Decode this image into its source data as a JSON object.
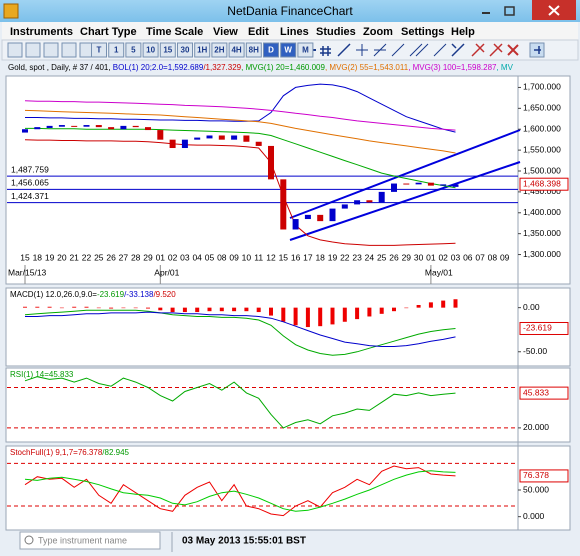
{
  "window": {
    "title": "NetDania FinanceChart",
    "menu": [
      "Instruments",
      "Chart Type",
      "Time Scale",
      "View",
      "Edit",
      "Lines",
      "Studies",
      "Zoom",
      "Settings",
      "Help"
    ],
    "toolbar": [
      "T",
      "1",
      "5",
      "10",
      "15",
      "30",
      "1H",
      "2H",
      "4H",
      "8H",
      "D",
      "W",
      "M"
    ],
    "active_toolbar": [
      "D",
      "W"
    ],
    "search_placeholder": "Type instrument name",
    "status": "03 May 2013 15:55:01 BST"
  },
  "chart": {
    "legend": [
      {
        "text": "Gold, spot , Daily, # 37 / 401, ",
        "color": "#000000"
      },
      {
        "text": "BOL(1) 20;2.0=1,592.689",
        "color": "#0000cc"
      },
      {
        "text": "/1,327.329",
        "color": "#cc0000"
      },
      {
        "text": ", MVG(1) 20=1,460.009",
        "color": "#009900"
      },
      {
        "text": ", MVG(2) 55=1,543.011",
        "color": "#e07000"
      },
      {
        "text": ", MVG(3) 100=1,598.287",
        "color": "#cc00cc"
      },
      {
        "text": ", MV",
        "color": "#00aaaa"
      }
    ],
    "dates": [
      "15",
      "18",
      "19",
      "20",
      "21",
      "22",
      "25",
      "26",
      "27",
      "28",
      "29",
      "01",
      "02",
      "03",
      "04",
      "05",
      "08",
      "09",
      "10",
      "11",
      "12",
      "15",
      "16",
      "17",
      "18",
      "19",
      "22",
      "23",
      "24",
      "25",
      "26",
      "29",
      "30",
      "01",
      "02",
      "03",
      "06",
      "07",
      "08",
      "09"
    ],
    "months": [
      {
        "index": 0,
        "label": "Mar/15/13"
      },
      {
        "index": 11,
        "label": "Apr/01"
      },
      {
        "index": 33,
        "label": "May/01"
      }
    ],
    "price": {
      "ylim": [
        1275,
        1725
      ],
      "yticks": [
        {
          "value": 1300,
          "label": "1,300.000"
        },
        {
          "value": 1350,
          "label": "1,350.000"
        },
        {
          "value": 1400,
          "label": "1,400.000"
        },
        {
          "value": 1450,
          "label": "1,450.000"
        },
        {
          "value": 1500,
          "label": "1,500.000"
        },
        {
          "value": 1550,
          "label": "1,550.000"
        },
        {
          "value": 1600,
          "label": "1,600.000"
        },
        {
          "value": 1650,
          "label": "1,650.000"
        },
        {
          "value": 1700,
          "label": "1,700.000"
        }
      ],
      "levels": [
        {
          "value": 1487.759,
          "label": "1,487.759"
        },
        {
          "value": 1456.065,
          "label": "1,456.065"
        },
        {
          "value": 1424.371,
          "label": "1,424.371"
        }
      ],
      "current": {
        "value": 1468.398,
        "label": "1,468.398"
      },
      "up_color": "#0000cc",
      "down_color": "#cc0000",
      "open": [
        1592,
        1600,
        1603,
        1606,
        1608,
        1606,
        1610,
        1605,
        1600,
        1608,
        1605,
        1598,
        1575,
        1555,
        1575,
        1578,
        1585,
        1575,
        1585,
        1570,
        1560,
        1480,
        1360,
        1385,
        1395,
        1380,
        1410,
        1420,
        1430,
        1425,
        1450,
        1470,
        1468,
        1472,
        1465,
        1462,
        null,
        null,
        null,
        null
      ],
      "close": [
        1600,
        1605,
        1608,
        1610,
        1606,
        1610,
        1605,
        1600,
        1608,
        1605,
        1598,
        1575,
        1555,
        1575,
        1580,
        1585,
        1575,
        1585,
        1570,
        1560,
        1480,
        1360,
        1385,
        1395,
        1380,
        1410,
        1420,
        1430,
        1425,
        1450,
        1470,
        1468,
        1472,
        1465,
        1468,
        1468,
        null,
        null,
        null,
        null
      ],
      "series": [
        {
          "name": "BOL upper",
          "color": "#0000cc",
          "values": [
            1628,
            1628,
            1627,
            1627,
            1626,
            1626,
            1625,
            1625,
            1624,
            1624,
            1623,
            1622,
            1622,
            1621,
            1621,
            1620,
            1620,
            1619,
            1619,
            1620,
            1640,
            1680,
            1700,
            1705,
            1708,
            1706,
            1700,
            1690,
            1675,
            1660,
            1645,
            1630,
            1620,
            1610,
            1600,
            1593,
            null,
            null,
            null,
            null
          ]
        },
        {
          "name": "BOL lower",
          "color": "#cc0000",
          "values": [
            1575,
            1574,
            1574,
            1573,
            1573,
            1572,
            1572,
            1572,
            1571,
            1571,
            1570,
            1568,
            1565,
            1563,
            1562,
            1562,
            1561,
            1560,
            1558,
            1555,
            1520,
            1440,
            1370,
            1345,
            1335,
            1330,
            1326,
            1324,
            1322,
            1322,
            1322,
            1323,
            1324,
            1325,
            1326,
            1327,
            null,
            null,
            null,
            null
          ]
        },
        {
          "name": "MVG 20",
          "color": "#00aa00",
          "values": [
            1602,
            1602,
            1601,
            1601,
            1601,
            1600,
            1600,
            1600,
            1600,
            1600,
            1600,
            1599,
            1598,
            1597,
            1596,
            1595,
            1594,
            1593,
            1592,
            1590,
            1585,
            1575,
            1565,
            1555,
            1545,
            1535,
            1525,
            1515,
            1505,
            1495,
            1488,
            1482,
            1476,
            1470,
            1465,
            1460,
            null,
            null,
            null,
            null
          ]
        },
        {
          "name": "MVG 55",
          "color": "#e07000",
          "values": [
            1645,
            1644,
            1643,
            1642,
            1641,
            1640,
            1639,
            1638,
            1637,
            1636,
            1635,
            1634,
            1632,
            1630,
            1628,
            1626,
            1624,
            1622,
            1620,
            1618,
            1614,
            1608,
            1602,
            1597,
            1592,
            1587,
            1582,
            1577,
            1572,
            1568,
            1564,
            1560,
            1556,
            1552,
            1548,
            1543,
            null,
            null,
            null,
            null
          ]
        },
        {
          "name": "MVG 100",
          "color": "#cc00cc",
          "values": [
            1668,
            1667,
            1667,
            1666,
            1666,
            1665,
            1665,
            1664,
            1663,
            1662,
            1661,
            1660,
            1659,
            1657,
            1656,
            1655,
            1654,
            1652,
            1650,
            1648,
            1645,
            1642,
            1638,
            1635,
            1631,
            1628,
            1624,
            1620,
            1617,
            1614,
            1611,
            1608,
            1605,
            1602,
            1600,
            1598,
            null,
            null,
            null,
            null
          ]
        }
      ]
    },
    "macd": {
      "legend": [
        {
          "text": "MACD(1) 12.0,26.0,9.0=",
          "color": "#000000"
        },
        {
          "text": "-23.619",
          "color": "#009900"
        },
        {
          "text": "/-33.138",
          "color": "#0000cc"
        },
        {
          "text": "/9.520",
          "color": "#cc0000"
        }
      ],
      "ylim": [
        -65,
        20
      ],
      "yticks": [
        {
          "value": 0,
          "label": "0.00"
        },
        {
          "value": -50,
          "label": "-50.00"
        }
      ],
      "current": {
        "value": -23.619,
        "label": "-23.619"
      },
      "hist_color": "#ee0000",
      "histogram": [
        1,
        1,
        1,
        0,
        1,
        1,
        0,
        -1,
        0,
        0,
        -1,
        -3,
        -5,
        -5,
        -5,
        -4,
        -4,
        -4,
        -4,
        -5,
        -9,
        -16,
        -20,
        -22,
        -21,
        -19,
        -16,
        -13,
        -10,
        -7,
        -4,
        0,
        3,
        6,
        8,
        9.52,
        null,
        null,
        null,
        null
      ],
      "series": [
        {
          "name": "MACD",
          "color": "#00aa00",
          "values": [
            -8,
            -7,
            -6,
            -5,
            -4,
            -3,
            -3,
            -3,
            -3,
            -3,
            -4,
            -6,
            -8,
            -9,
            -10,
            -10,
            -11,
            -11,
            -12,
            -14,
            -20,
            -32,
            -42,
            -48,
            -52,
            -54,
            -53,
            -50,
            -46,
            -42,
            -38,
            -34,
            -30,
            -27,
            -25,
            -23.619,
            null,
            null,
            null,
            null
          ]
        },
        {
          "name": "Signal",
          "color": "#0000cc",
          "values": [
            -10,
            -10,
            -9,
            -9,
            -8,
            -7,
            -7,
            -6,
            -6,
            -6,
            -5,
            -6,
            -6,
            -7,
            -7,
            -8,
            -8,
            -9,
            -9,
            -10,
            -12,
            -16,
            -21,
            -26,
            -31,
            -35,
            -39,
            -41,
            -43,
            -44,
            -44,
            -43,
            -41,
            -38,
            -36,
            -33.138,
            null,
            null,
            null,
            null
          ]
        }
      ]
    },
    "rsi": {
      "legend": [
        {
          "text": "RSI(1) 14=45.833",
          "color": "#009900"
        }
      ],
      "ylim": [
        11,
        63
      ],
      "yticks": [
        {
          "value": 20,
          "label": "20.000"
        }
      ],
      "levels": [
        50,
        20
      ],
      "current": {
        "value": 45.833,
        "label": "45.833"
      },
      "series": [
        {
          "name": "RSI",
          "color": "#00aa00",
          "values": [
            55,
            58,
            56,
            57,
            54,
            57,
            53,
            51,
            57,
            54,
            50,
            44,
            40,
            47,
            50,
            53,
            48,
            54,
            46,
            42,
            30,
            20,
            24,
            26,
            23,
            29,
            31,
            34,
            33,
            39,
            45,
            44,
            46,
            44,
            45,
            45.833,
            null,
            null,
            null,
            null
          ]
        }
      ]
    },
    "stoch": {
      "legend": [
        {
          "text": "StochFull(1) 9,1,7=76.378",
          "color": "#cc0000"
        },
        {
          "text": "/82.945",
          "color": "#009900"
        }
      ],
      "ylim": [
        -25,
        125
      ],
      "yticks": [
        {
          "value": 50,
          "label": "50.000"
        },
        {
          "value": 0,
          "label": "0.000"
        }
      ],
      "levels": [
        100,
        20
      ],
      "current": {
        "value": 76.378,
        "label": "76.378"
      },
      "series": [
        {
          "name": "%K",
          "color": "#ee0000",
          "values": [
            60,
            75,
            70,
            72,
            55,
            70,
            40,
            25,
            60,
            45,
            30,
            15,
            10,
            40,
            55,
            65,
            30,
            60,
            20,
            15,
            5,
            2,
            20,
            30,
            18,
            45,
            55,
            70,
            60,
            85,
            95,
            90,
            92,
            80,
            78,
            76.378,
            null,
            null,
            null,
            null
          ]
        },
        {
          "name": "%D",
          "color": "#00cc00",
          "values": [
            70,
            68,
            72,
            74,
            70,
            66,
            60,
            52,
            45,
            42,
            40,
            35,
            25,
            22,
            28,
            38,
            45,
            48,
            42,
            35,
            25,
            15,
            10,
            12,
            18,
            25,
            33,
            42,
            50,
            60,
            70,
            78,
            84,
            86,
            84,
            82.945,
            null,
            null,
            null,
            null
          ]
        }
      ]
    }
  }
}
